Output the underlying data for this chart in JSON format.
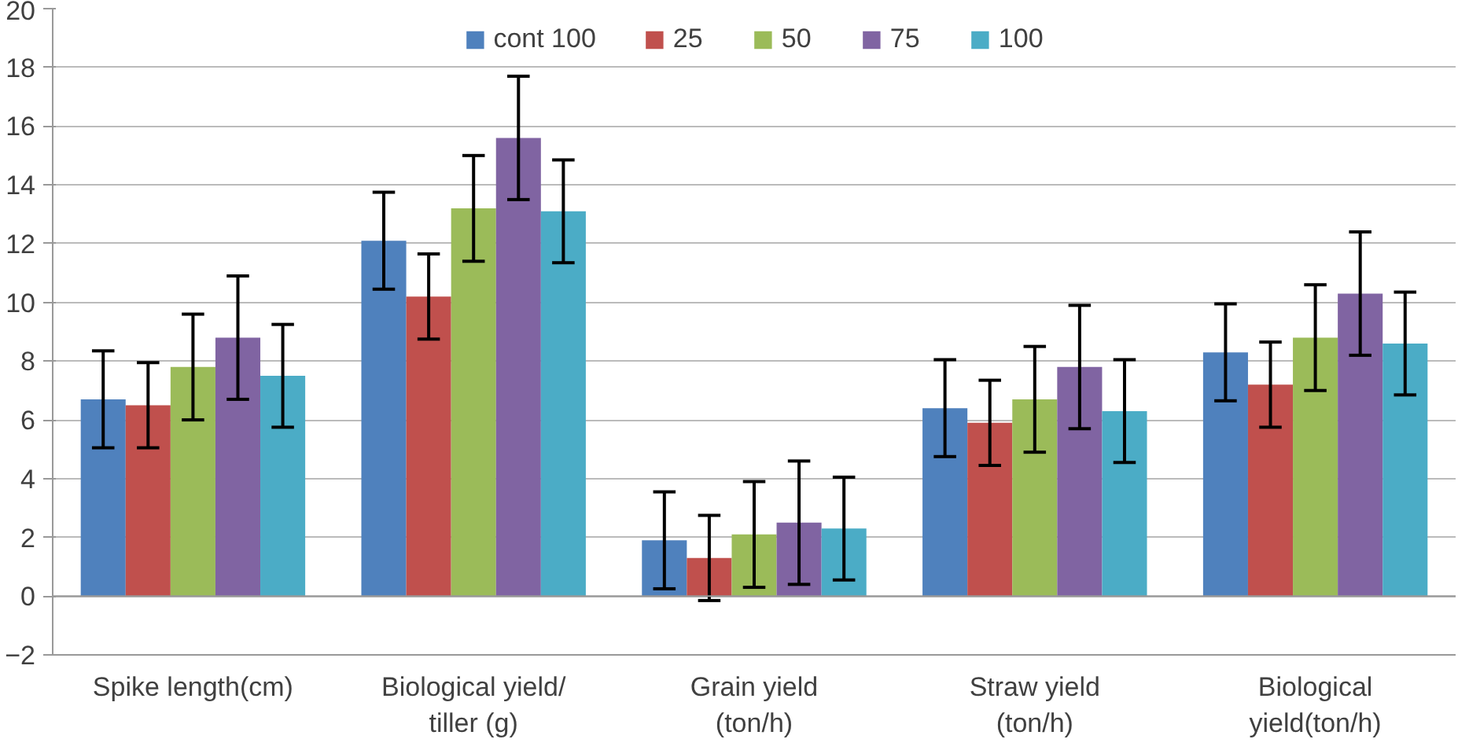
{
  "chart_data": {
    "type": "bar",
    "categories": [
      "Spike length(cm)",
      "Biological yield/ tiller (g)",
      "Grain yield (ton/h)",
      "Straw yield (ton/h)",
      "Biological yield(ton/h)"
    ],
    "series": [
      {
        "name": "cont 100",
        "color": "#4f81bd",
        "values": [
          6.7,
          12.1,
          1.9,
          6.4,
          8.3
        ],
        "errors": [
          1.65,
          1.65,
          1.65,
          1.65,
          1.65
        ]
      },
      {
        "name": "25",
        "color": "#c0504d",
        "values": [
          6.5,
          10.2,
          1.3,
          5.9,
          7.2
        ],
        "errors": [
          1.45,
          1.45,
          1.45,
          1.45,
          1.45
        ]
      },
      {
        "name": "50",
        "color": "#9bbb59",
        "values": [
          7.8,
          13.2,
          2.1,
          6.7,
          8.8
        ],
        "errors": [
          1.8,
          1.8,
          1.8,
          1.8,
          1.8
        ]
      },
      {
        "name": "75",
        "color": "#8064a2",
        "values": [
          8.8,
          15.6,
          2.5,
          7.8,
          10.3
        ],
        "errors": [
          2.1,
          2.1,
          2.1,
          2.1,
          2.1
        ]
      },
      {
        "name": "100",
        "color": "#4bacc6",
        "values": [
          7.5,
          13.1,
          2.3,
          6.3,
          8.6
        ],
        "errors": [
          1.75,
          1.75,
          1.75,
          1.75,
          1.75
        ]
      }
    ],
    "ylim": [
      -2,
      20
    ],
    "yticks": [
      -2,
      0,
      2,
      4,
      6,
      8,
      10,
      12,
      14,
      16,
      18,
      20
    ],
    "grid": "y",
    "legend": "top"
  }
}
